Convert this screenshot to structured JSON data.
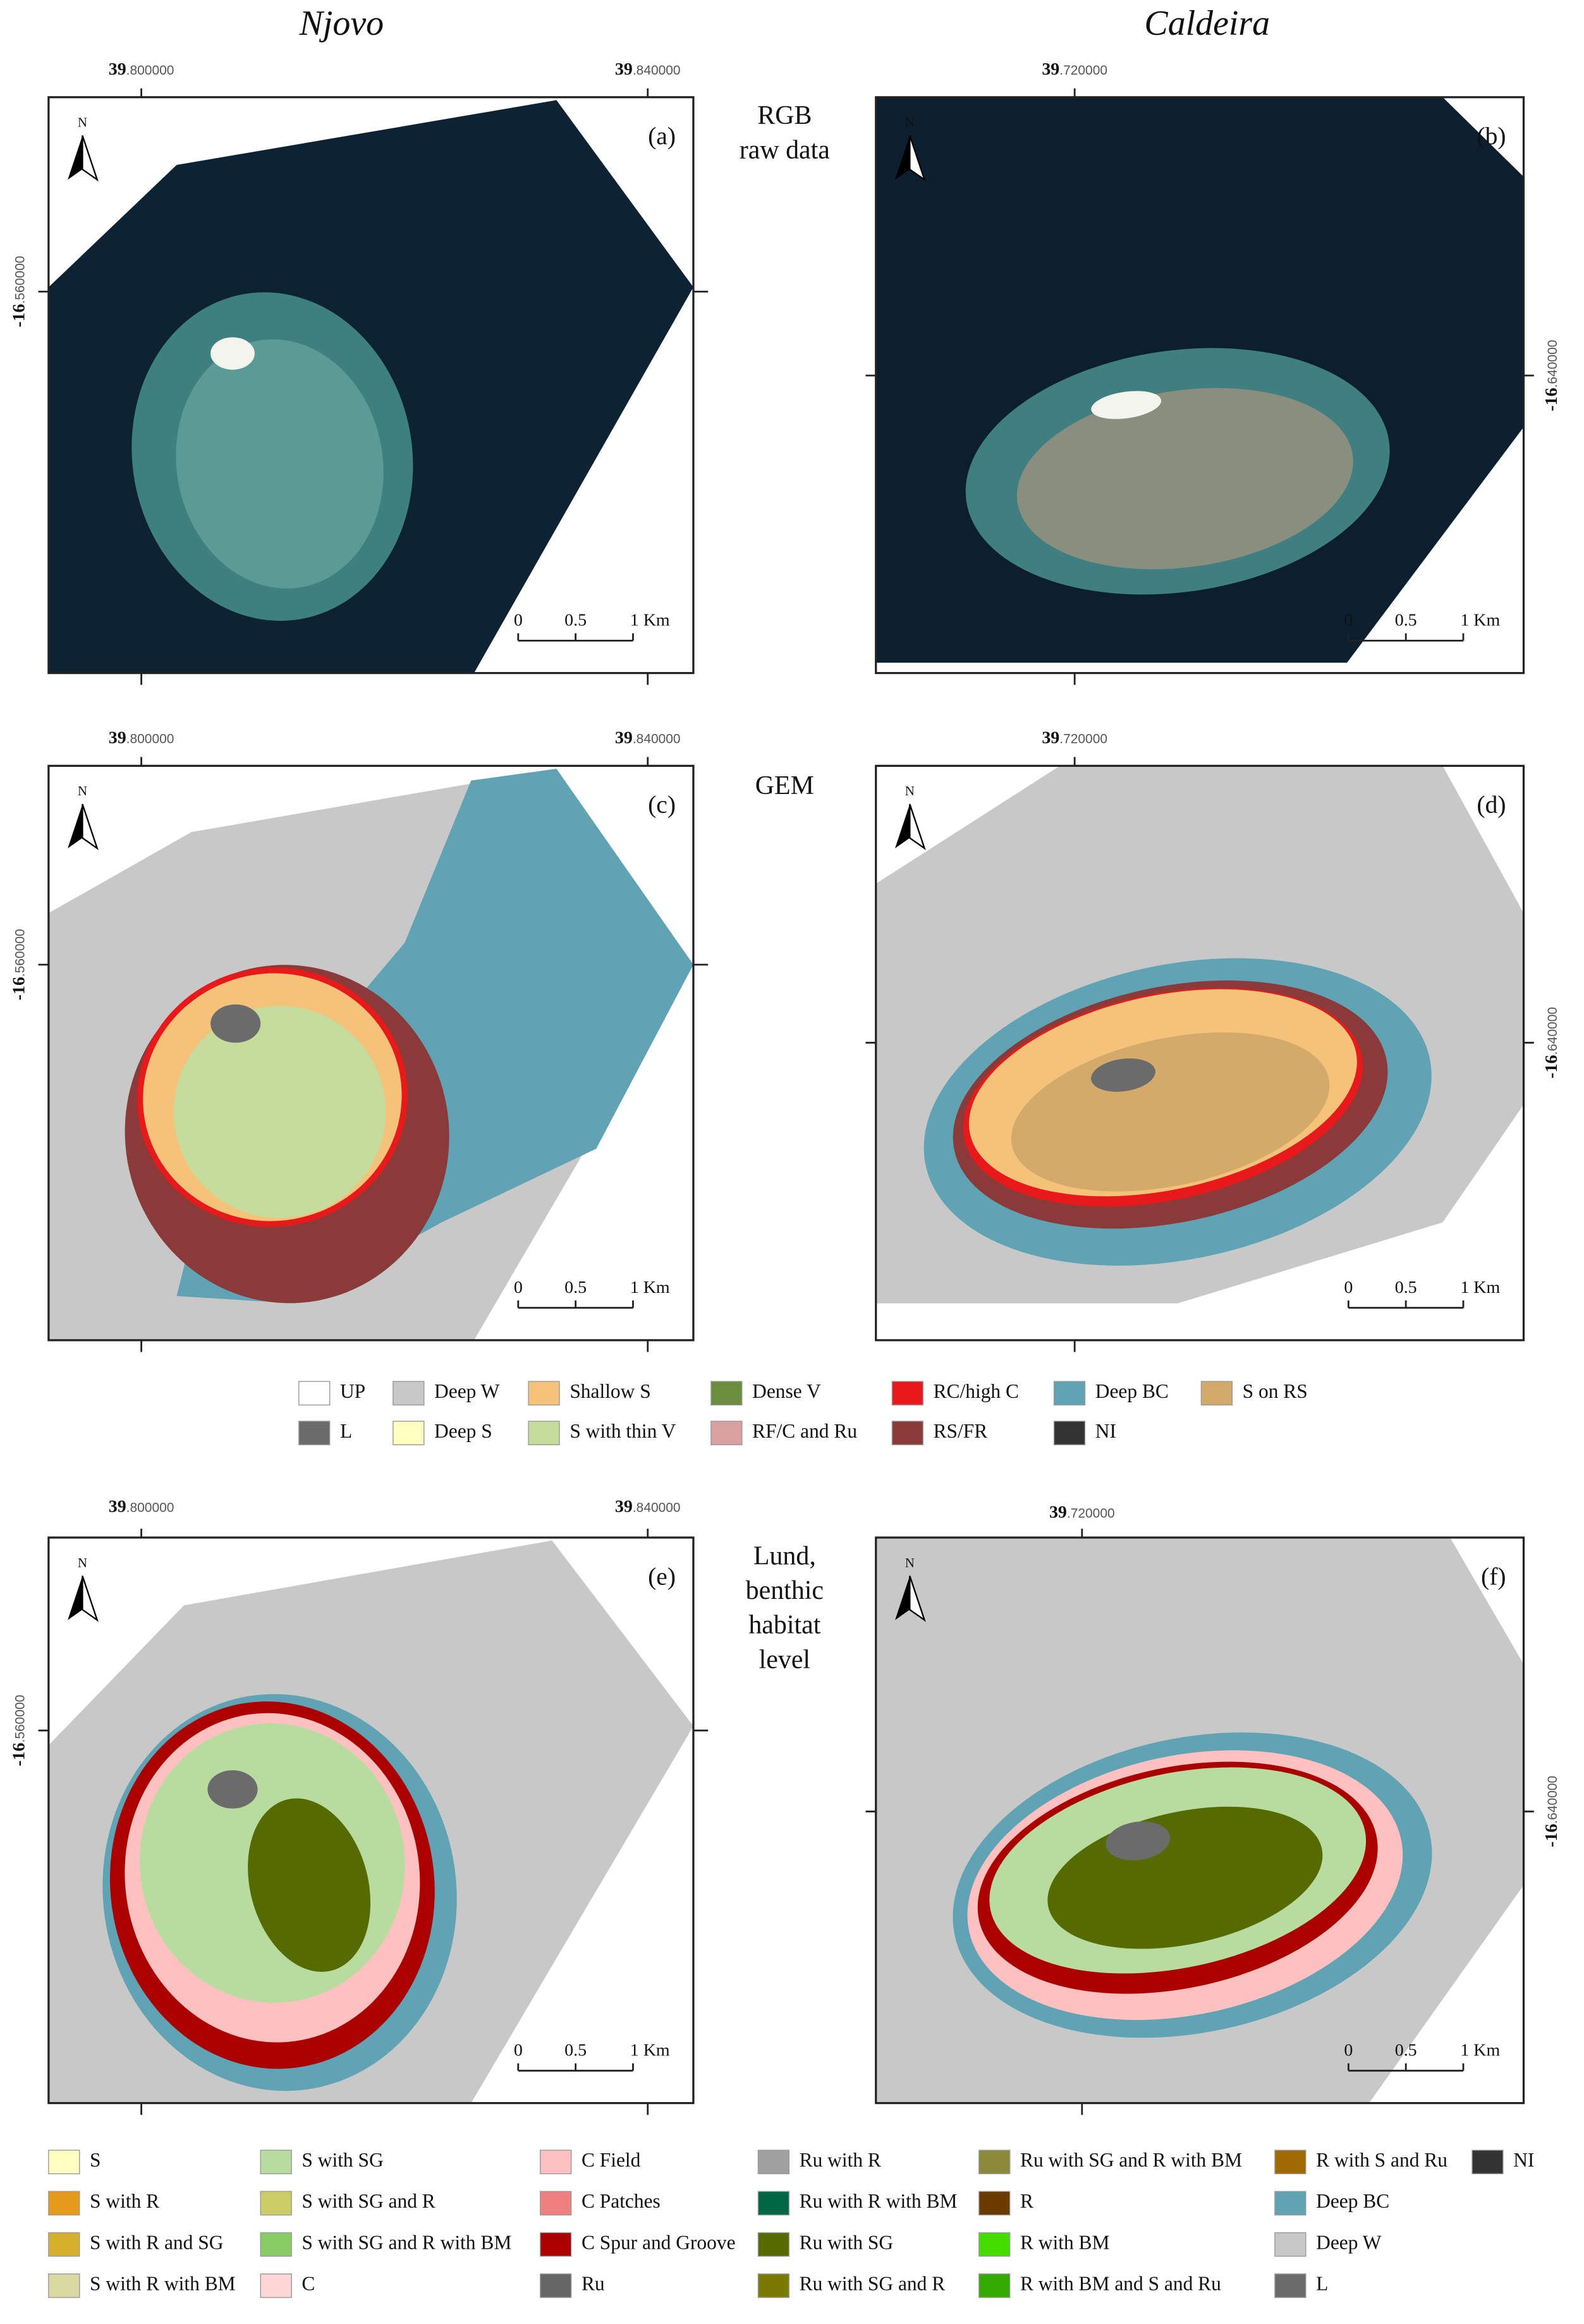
{
  "column_titles": [
    "Njovo",
    "Caldeira"
  ],
  "row_labels": [
    [
      "RGB",
      "raw data"
    ],
    [
      "GEM"
    ],
    [
      "Lund,",
      "benthic",
      "habitat",
      "level"
    ]
  ],
  "north_label": "N",
  "scale_bar": [
    "0",
    "0.5",
    "1 Km"
  ],
  "panels": [
    {
      "letter": "(a)",
      "lon": [
        {
          "deg": "39",
          "dec": ".800000"
        },
        {
          "deg": "39",
          "dec": ".840000"
        }
      ],
      "lat": {
        "deg": "-16",
        "dec": ".560000"
      }
    },
    {
      "letter": "(b)",
      "lon": [
        {
          "deg": "39",
          "dec": ".720000"
        }
      ],
      "lat": {
        "deg": "-16",
        "dec": ".640000"
      }
    },
    {
      "letter": "(c)",
      "lon": [
        {
          "deg": "39",
          "dec": ".800000"
        },
        {
          "deg": "39",
          "dec": ".840000"
        }
      ],
      "lat": {
        "deg": "-16",
        "dec": ".560000"
      }
    },
    {
      "letter": "(d)",
      "lon": [
        {
          "deg": "39",
          "dec": ".720000"
        }
      ],
      "lat": {
        "deg": "-16",
        "dec": ".640000"
      }
    },
    {
      "letter": "(e)",
      "lon": [
        {
          "deg": "39",
          "dec": ".800000"
        },
        {
          "deg": "39",
          "dec": ".840000"
        }
      ],
      "lat": {
        "deg": "-16",
        "dec": ".560000"
      }
    },
    {
      "letter": "(f)",
      "lon": [
        {
          "deg": "39",
          "dec": ".720000"
        }
      ],
      "lat": {
        "deg": "-16",
        "dec": ".640000"
      }
    }
  ],
  "gem_legend": [
    [
      {
        "label": "UP",
        "color": "#ffffff"
      },
      {
        "label": "Deep W",
        "color": "#c8c8c8"
      },
      {
        "label": "Shallow S",
        "color": "#f5c27a"
      },
      {
        "label": "Dense V",
        "color": "#6b8e3e"
      },
      {
        "label": "RC/high C",
        "color": "#e8191b"
      },
      {
        "label": "Deep BC",
        "color": "#5fa3b5"
      },
      {
        "label": "S on RS",
        "color": "#d4aa6a"
      }
    ],
    [
      {
        "label": "L",
        "color": "#6b6b6b"
      },
      {
        "label": "Deep S",
        "color": "#ffffc0"
      },
      {
        "label": "S with thin V",
        "color": "#c6dc9c"
      },
      {
        "label": "RF/C and Ru",
        "color": "#d8a0a0"
      },
      {
        "label": "RS/FR",
        "color": "#8b3a3a"
      },
      {
        "label": "NI",
        "color": "#333333"
      }
    ]
  ],
  "lund_legend": [
    [
      {
        "label": "S",
        "color": "#ffffc0"
      },
      {
        "label": "S with R",
        "color": "#e59a1a"
      },
      {
        "label": "S with R and SG",
        "color": "#d6b02a"
      },
      {
        "label": "S with R with BM",
        "color": "#d9d9a0"
      }
    ],
    [
      {
        "label": "S with SG",
        "color": "#b8dca0"
      },
      {
        "label": "S with SG and R",
        "color": "#cccc66"
      },
      {
        "label": "S with SG and R with BM",
        "color": "#88cc66"
      },
      {
        "label": "C",
        "color": "#ffd6d6"
      }
    ],
    [
      {
        "label": "C Field",
        "color": "#ffc0c0"
      },
      {
        "label": "C Patches",
        "color": "#f08080"
      },
      {
        "label": "C Spur and Groove",
        "color": "#aa0000"
      },
      {
        "label": "Ru",
        "color": "#666666"
      }
    ],
    [
      {
        "label": "Ru with R",
        "color": "#a0a0a0"
      },
      {
        "label": "Ru with R with BM",
        "color": "#006644"
      },
      {
        "label": "Ru with SG",
        "color": "#556b00"
      },
      {
        "label": "Ru with SG and R",
        "color": "#7a7a00"
      }
    ],
    [
      {
        "label": "Ru with SG and R with BM",
        "color": "#8a8a3a"
      },
      {
        "label": "R",
        "color": "#6b3a00"
      },
      {
        "label": "R with BM",
        "color": "#44dd00"
      },
      {
        "label": "R with BM and S and Ru",
        "color": "#33aa00"
      }
    ],
    [
      {
        "label": "R with S and Ru",
        "color": "#a06a00"
      },
      {
        "label": "Deep BC",
        "color": "#5fa3b5"
      },
      {
        "label": "Deep W",
        "color": "#c8c8c8"
      },
      {
        "label": "L",
        "color": "#6b6b6b"
      }
    ],
    [
      {
        "label": "NI",
        "color": "#333333"
      }
    ]
  ]
}
